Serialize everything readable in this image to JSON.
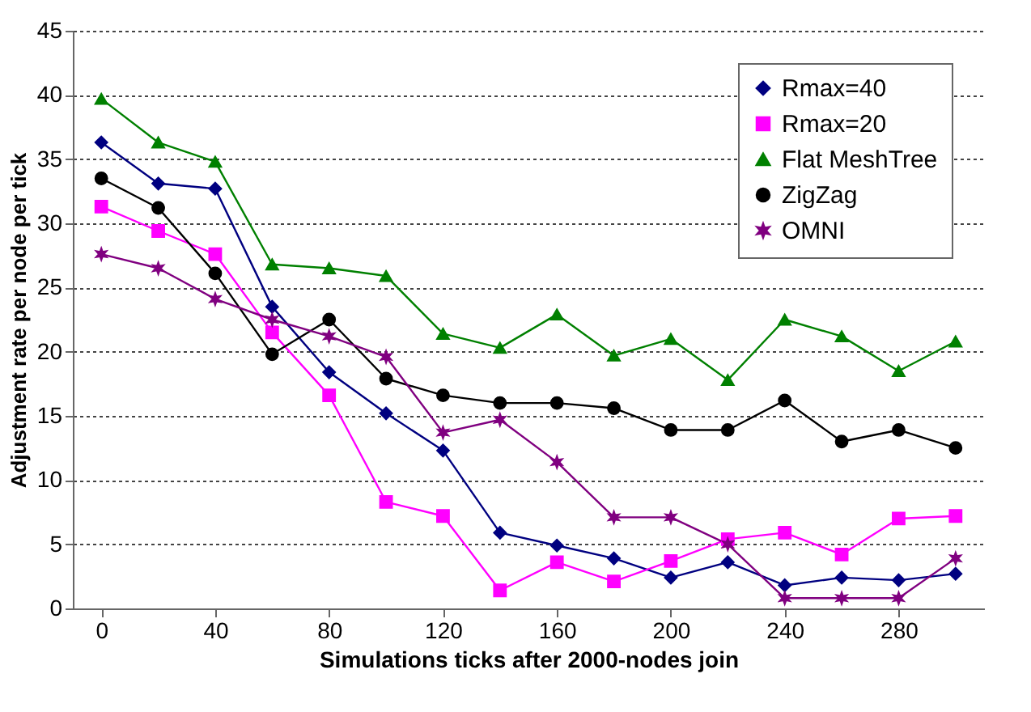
{
  "chart_data": {
    "type": "line",
    "xlabel": "Simulations ticks after 2000-nodes join",
    "ylabel": "Adjustment rate per node per tick",
    "x": [
      0,
      20,
      40,
      60,
      80,
      100,
      120,
      140,
      160,
      180,
      200,
      220,
      240,
      260,
      280,
      300
    ],
    "series": [
      {
        "name": "Rmax=40",
        "color": "#000080",
        "marker": "diamond",
        "values": [
          36.3,
          33.1,
          32.7,
          23.5,
          18.4,
          15.2,
          12.3,
          5.9,
          4.9,
          3.9,
          2.4,
          3.6,
          1.8,
          2.4,
          2.2,
          2.7
        ]
      },
      {
        "name": "Rmax=20",
        "color": "#ff00ff",
        "marker": "square",
        "values": [
          31.3,
          29.4,
          27.6,
          21.5,
          16.6,
          8.3,
          7.2,
          1.4,
          3.6,
          2.1,
          3.7,
          5.4,
          5.9,
          4.2,
          7.0,
          7.2
        ]
      },
      {
        "name": "Flat MeshTree",
        "color": "#008000",
        "marker": "triangle",
        "values": [
          39.7,
          36.3,
          34.8,
          26.8,
          26.5,
          25.9,
          21.4,
          20.3,
          22.9,
          19.7,
          21.0,
          17.8,
          22.5,
          21.2,
          18.5,
          20.8
        ]
      },
      {
        "name": "ZigZag",
        "color": "#000000",
        "marker": "circle",
        "values": [
          33.5,
          31.2,
          26.1,
          19.8,
          22.5,
          17.9,
          16.6,
          16.0,
          16.0,
          15.6,
          13.9,
          13.9,
          16.2,
          13.0,
          13.9,
          12.5
        ]
      },
      {
        "name": "OMNI",
        "color": "#800080",
        "marker": "cross",
        "values": [
          27.6,
          26.5,
          24.1,
          22.5,
          21.2,
          19.6,
          13.7,
          14.7,
          11.4,
          7.1,
          7.1,
          5.0,
          0.8,
          0.8,
          0.8,
          3.9
        ]
      }
    ],
    "xlim": [
      -10,
      310
    ],
    "xticks": [
      0,
      40,
      80,
      120,
      160,
      200,
      240,
      280
    ],
    "ylim": [
      0,
      45
    ],
    "yticks": [
      0,
      5,
      10,
      15,
      20,
      25,
      30,
      35,
      40,
      45
    ],
    "grid": "y",
    "legend": "top right",
    "line_style": "solid"
  }
}
